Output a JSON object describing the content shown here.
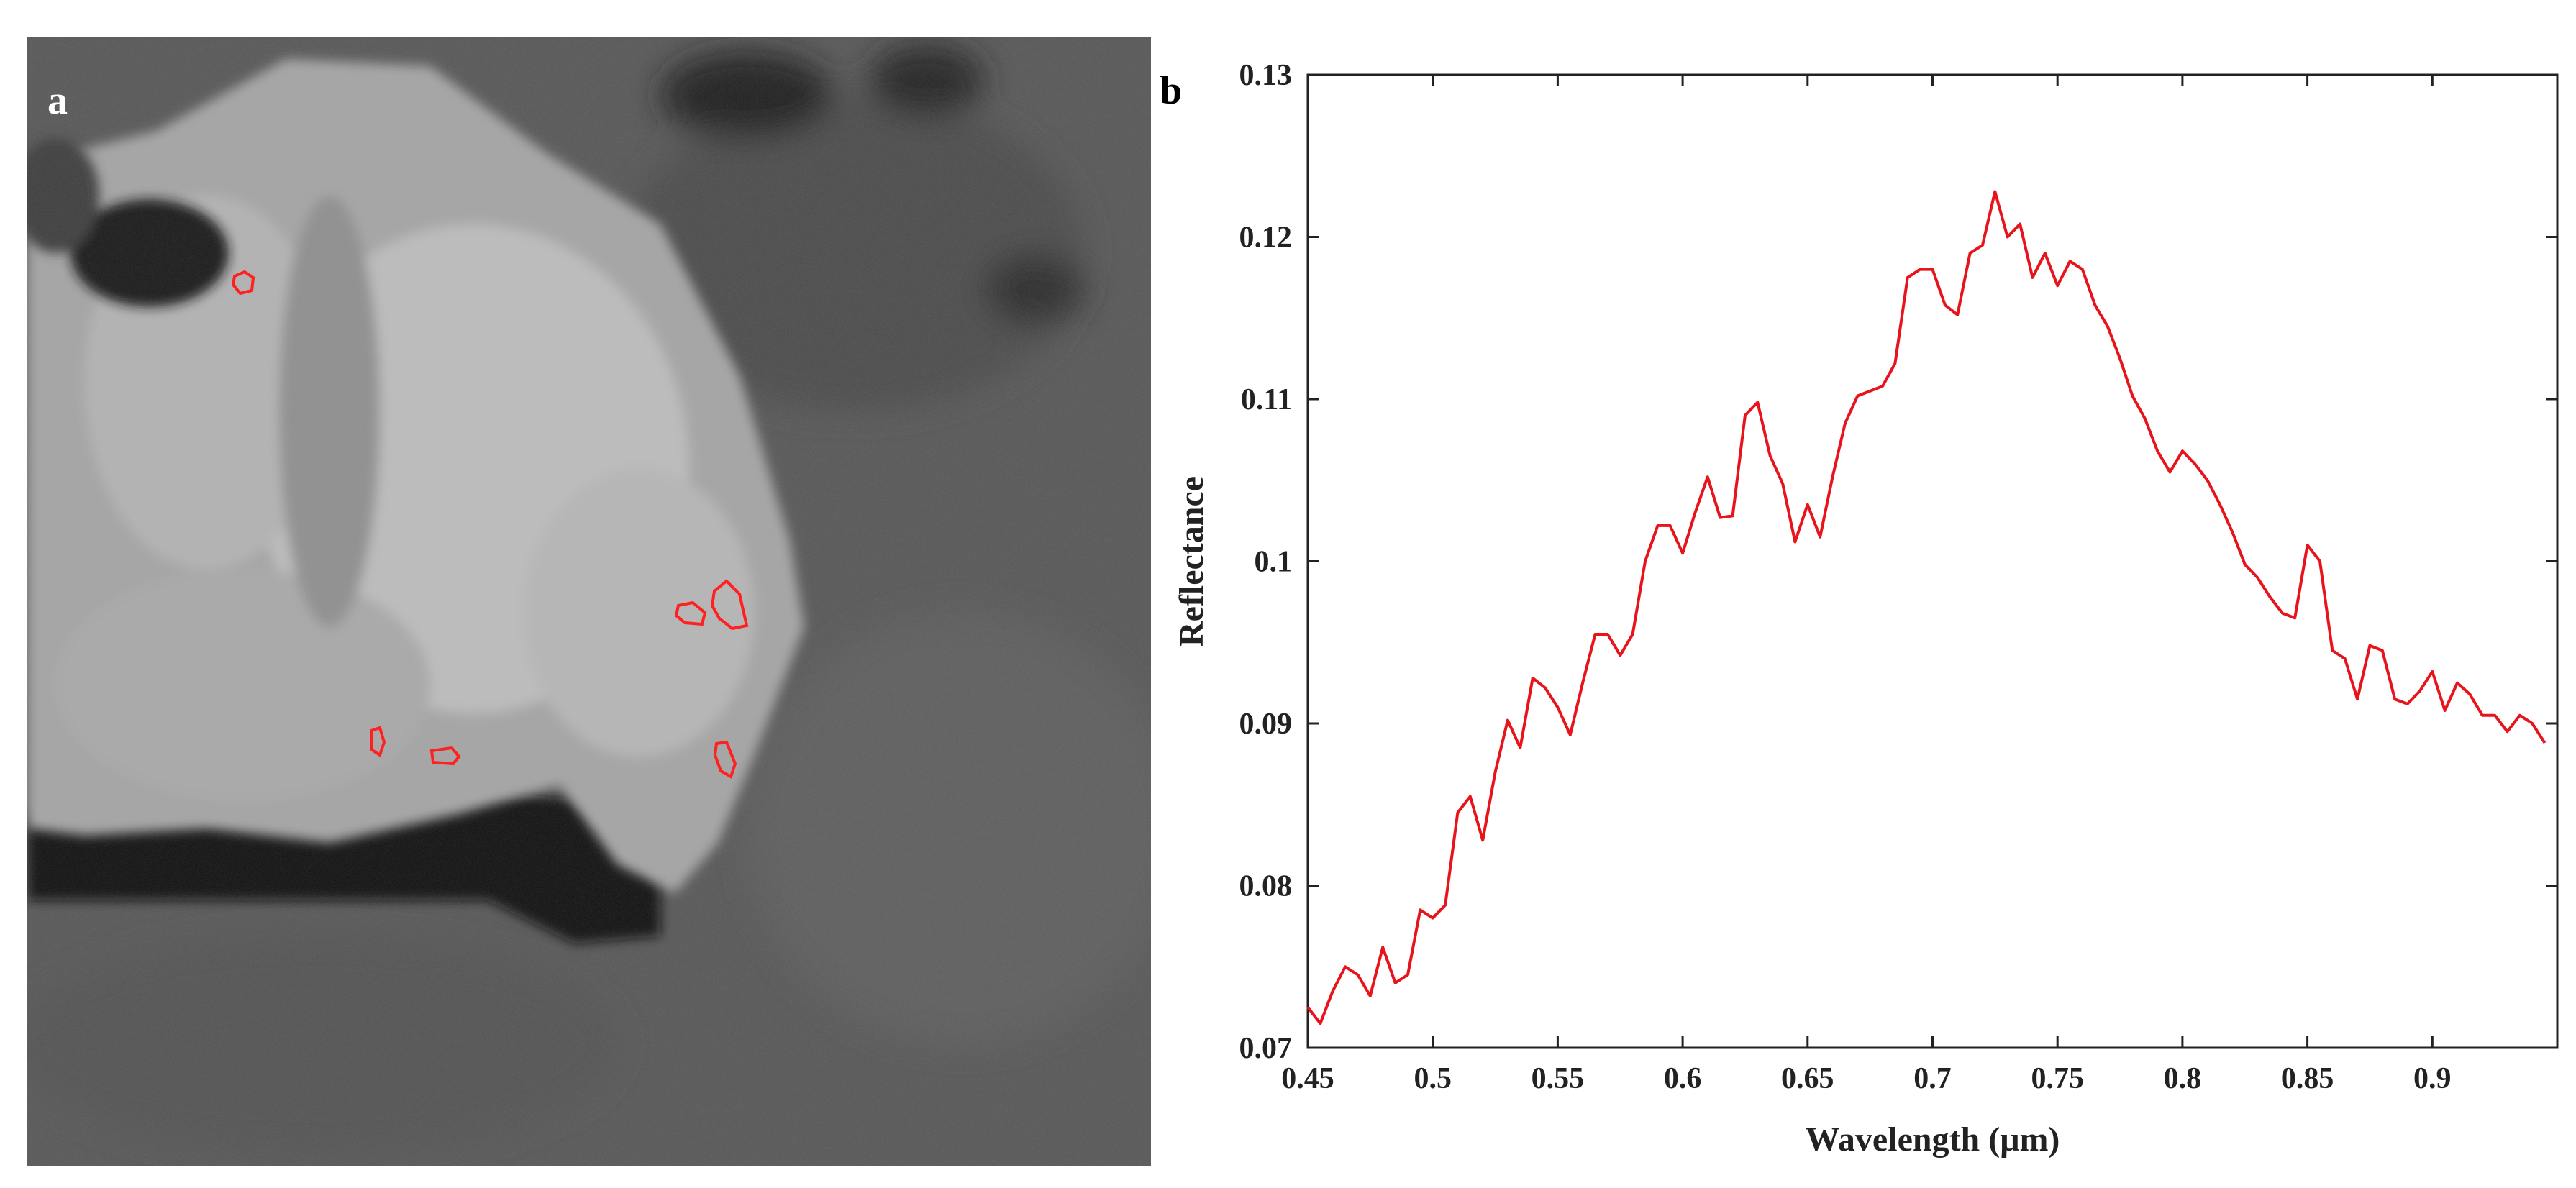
{
  "panels": {
    "a_label": "a",
    "b_label": "b"
  },
  "colors": {
    "series": "#e8141c",
    "axis": "#222222",
    "roi_outline": "#ff2020"
  },
  "chart_data": {
    "type": "line",
    "title": "",
    "xlabel": "Wavelength (μm)",
    "ylabel": "Reflectance",
    "xlim": [
      0.45,
      0.95
    ],
    "ylim": [
      0.07,
      0.13
    ],
    "xticks": [
      0.45,
      0.5,
      0.55,
      0.6,
      0.65,
      0.7,
      0.75,
      0.8,
      0.85,
      0.9
    ],
    "xtick_labels": [
      "0.45",
      "0.5",
      "0.55",
      "0.6",
      "0.65",
      "0.7",
      "0.75",
      "0.8",
      "0.85",
      "0.9"
    ],
    "yticks": [
      0.07,
      0.08,
      0.09,
      0.1,
      0.11,
      0.12,
      0.13
    ],
    "ytick_labels": [
      "0.07",
      "0.08",
      "0.09",
      "0.1",
      "0.11",
      "0.12",
      "0.13"
    ],
    "grid": false,
    "legend": "none",
    "series": [
      {
        "x": [
          0.45,
          0.455,
          0.46,
          0.465,
          0.47,
          0.475,
          0.48,
          0.485,
          0.49,
          0.495,
          0.5,
          0.505,
          0.51,
          0.515,
          0.52,
          0.525,
          0.53,
          0.535,
          0.54,
          0.545,
          0.55,
          0.555,
          0.56,
          0.565,
          0.57,
          0.575,
          0.58,
          0.585,
          0.59,
          0.595,
          0.6,
          0.605,
          0.61,
          0.615,
          0.62,
          0.625,
          0.63,
          0.635,
          0.64,
          0.645,
          0.65,
          0.655,
          0.66,
          0.665,
          0.67,
          0.675,
          0.68,
          0.685,
          0.69,
          0.695,
          0.7,
          0.705,
          0.71,
          0.715,
          0.72,
          0.725,
          0.73,
          0.735,
          0.74,
          0.745,
          0.75,
          0.755,
          0.76,
          0.765,
          0.77,
          0.775,
          0.78,
          0.785,
          0.79,
          0.795,
          0.8,
          0.805,
          0.81,
          0.815,
          0.82,
          0.825,
          0.83,
          0.835,
          0.84,
          0.845,
          0.85,
          0.855,
          0.86,
          0.865,
          0.87,
          0.875,
          0.88,
          0.885,
          0.89,
          0.895,
          0.9,
          0.905,
          0.91,
          0.915,
          0.92,
          0.925,
          0.93,
          0.935,
          0.94,
          0.945
        ],
        "values": [
          0.0725,
          0.0715,
          0.0735,
          0.075,
          0.0745,
          0.0732,
          0.0762,
          0.074,
          0.0745,
          0.0785,
          0.078,
          0.0788,
          0.0845,
          0.0855,
          0.0828,
          0.087,
          0.0902,
          0.0885,
          0.0928,
          0.0922,
          0.091,
          0.0893,
          0.0925,
          0.0955,
          0.0955,
          0.0942,
          0.0955,
          0.1,
          0.1022,
          0.1022,
          0.1005,
          0.103,
          0.1052,
          0.1027,
          0.1028,
          0.109,
          0.1098,
          0.1065,
          0.1048,
          0.1012,
          0.1035,
          0.1015,
          0.1052,
          0.1085,
          0.1102,
          0.1105,
          0.1108,
          0.1122,
          0.1175,
          0.118,
          0.118,
          0.1158,
          0.1152,
          0.119,
          0.1195,
          0.1228,
          0.12,
          0.1208,
          0.1175,
          0.119,
          0.117,
          0.1185,
          0.118,
          0.1158,
          0.1145,
          0.1125,
          0.1102,
          0.1088,
          0.1068,
          0.1055,
          0.1068,
          0.106,
          0.105,
          0.1035,
          0.1018,
          0.0998,
          0.099,
          0.0978,
          0.0968,
          0.0965,
          0.101,
          0.1,
          0.0945,
          0.094,
          0.0915,
          0.0948,
          0.0945,
          0.0915,
          0.0912,
          0.092,
          0.0932,
          0.0908,
          0.0925,
          0.0918,
          0.0905,
          0.0905,
          0.0895,
          0.0905,
          0.09,
          0.0888
        ]
      }
    ]
  }
}
